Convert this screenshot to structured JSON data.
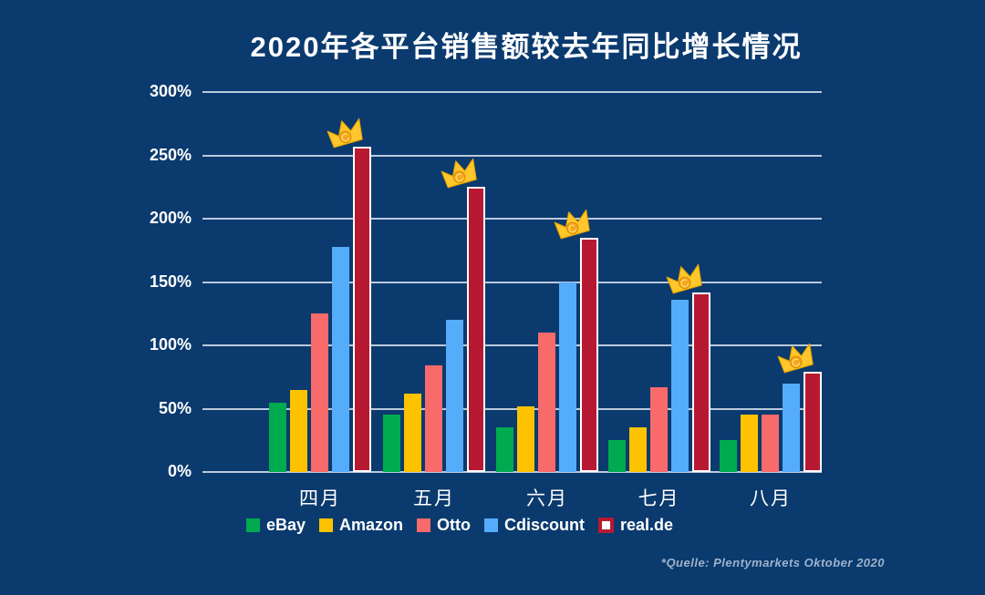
{
  "title": "2020年各平台销售额较去年同比增长情况",
  "source_note": "*Quelle: Plentymarkets Oktober 2020",
  "colors": {
    "background": "#0a3a6e",
    "gridline": "#cbd6e5",
    "text": "#ffffff",
    "source_text": "#9fb3cc",
    "crown_gold": "#ffc72c",
    "crown_coin": "#f5a623"
  },
  "chart_data": {
    "type": "bar",
    "title": "2020年各平台销售额较去年同比增长情况",
    "categories": [
      "四月",
      "五月",
      "六月",
      "七月",
      "八月"
    ],
    "series": [
      {
        "name": "eBay",
        "color": "#00ab50",
        "values": [
          55,
          45,
          35,
          25,
          25
        ]
      },
      {
        "name": "Amazon",
        "color": "#fdc300",
        "values": [
          65,
          62,
          52,
          35,
          45
        ]
      },
      {
        "name": "Otto",
        "color": "#f96a6a",
        "values": [
          125,
          84,
          110,
          67,
          45
        ]
      },
      {
        "name": "Cdiscount",
        "color": "#55acfa",
        "values": [
          178,
          120,
          150,
          136,
          70
        ]
      },
      {
        "name": "real.de",
        "color": "#b81932",
        "outline": "#ffffff",
        "crowned": true,
        "values": [
          257,
          225,
          185,
          142,
          79
        ]
      }
    ],
    "ylabel": "",
    "xlabel": "",
    "ylim": [
      0,
      300
    ],
    "yticks": [
      0,
      50,
      100,
      150,
      200,
      250,
      300
    ],
    "ytick_suffix": "%",
    "grid": true,
    "legend_position": "bottom",
    "annotations": "golden crown icon with coin on top of the real.de (tallest) bar in every month group"
  }
}
